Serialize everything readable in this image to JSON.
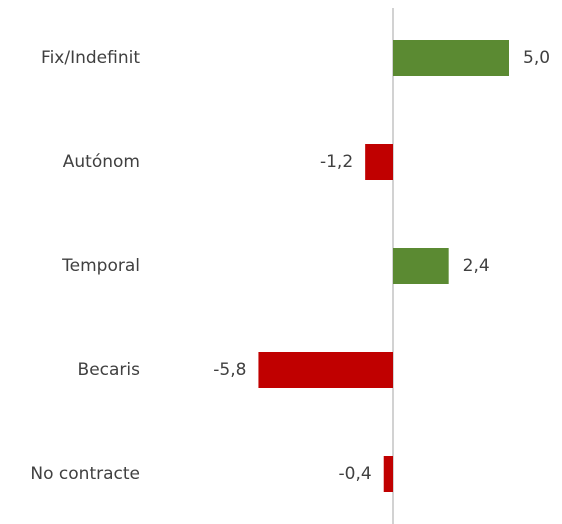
{
  "chart_data": {
    "type": "bar",
    "orientation": "horizontal",
    "categories": [
      "Fix/Indefinit",
      "Autónom",
      "Temporal",
      "Becaris",
      "No contracte"
    ],
    "values": [
      5.0,
      -1.2,
      2.4,
      -5.8,
      -0.4
    ],
    "value_labels": [
      "5,0",
      "-1,2",
      "2,4",
      "-5,8",
      "-0,4"
    ],
    "colors": [
      "#5b8a32",
      "#c00000",
      "#5b8a32",
      "#c00000",
      "#c00000"
    ]
  }
}
